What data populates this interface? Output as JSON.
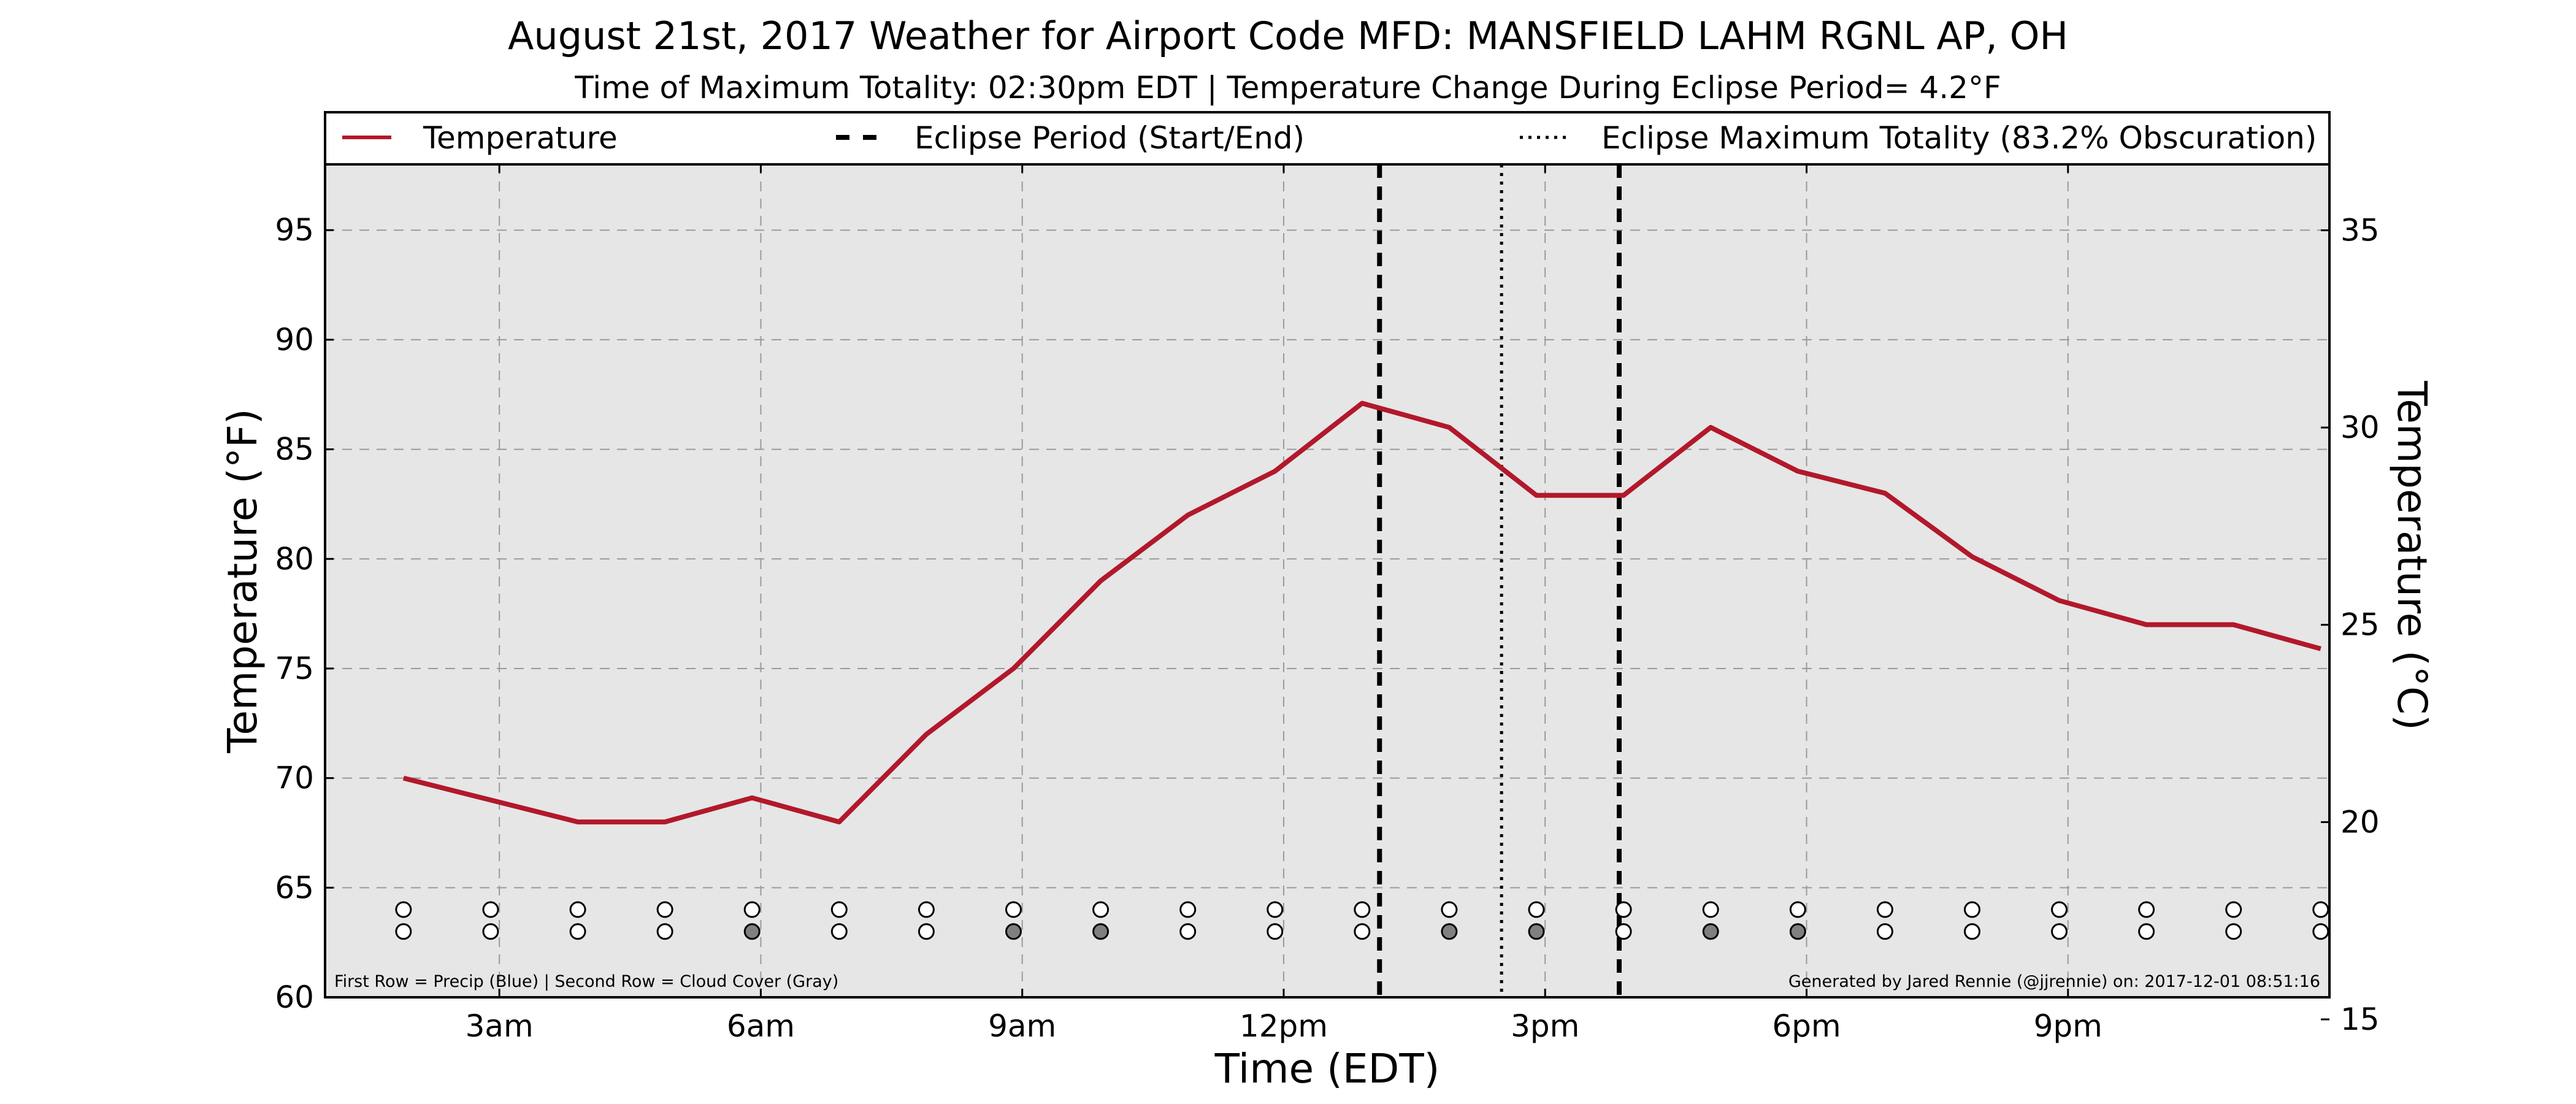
{
  "chart_data": {
    "type": "line",
    "title": "August 21st, 2017 Weather for Airport Code MFD: MANSFIELD LAHM RGNL AP, OH",
    "subtitle": "Time of Maximum Totality: 02:30pm EDT | Temperature Change During Eclipse Period= 4.2°F",
    "xlabel": "Time (EDT)",
    "ylabel": "Temperature (°F)",
    "y2label": "Temperature (°C)",
    "xlim": [
      1.0,
      24.0
    ],
    "ylim": [
      60,
      98
    ],
    "y2lim": [
      15.56,
      36.67
    ],
    "grid": true,
    "legend_position": "top",
    "x_ticks": [
      {
        "x": 3,
        "label": "3am"
      },
      {
        "x": 6,
        "label": "6am"
      },
      {
        "x": 9,
        "label": "9am"
      },
      {
        "x": 12,
        "label": "12pm"
      },
      {
        "x": 15,
        "label": "3pm"
      },
      {
        "x": 18,
        "label": "6pm"
      },
      {
        "x": 21,
        "label": "9pm"
      }
    ],
    "y_ticks": [
      {
        "y": 60,
        "label": "60"
      },
      {
        "y": 65,
        "label": "65"
      },
      {
        "y": 70,
        "label": "70"
      },
      {
        "y": 75,
        "label": "75"
      },
      {
        "y": 80,
        "label": "80"
      },
      {
        "y": 85,
        "label": "85"
      },
      {
        "y": 90,
        "label": "90"
      },
      {
        "y": 95,
        "label": "95"
      }
    ],
    "y2_ticks": [
      {
        "y": 15,
        "label": "15"
      },
      {
        "y": 20,
        "label": "20"
      },
      {
        "y": 25,
        "label": "25"
      },
      {
        "y": 30,
        "label": "30"
      },
      {
        "y": 35,
        "label": "35"
      }
    ],
    "series": [
      {
        "name": "Temperature",
        "color": "#b2182b",
        "x": [
          1.9,
          2.9,
          3.9,
          4.9,
          5.9,
          6.9,
          7.9,
          8.9,
          9.9,
          10.9,
          11.9,
          12.9,
          13.9,
          14.9,
          15.9,
          16.9,
          17.9,
          18.9,
          19.9,
          20.9,
          21.9,
          22.9,
          23.9
        ],
        "y": [
          70,
          69,
          68,
          68,
          69.1,
          68,
          72,
          75,
          79,
          82,
          84,
          87.1,
          86,
          82.9,
          82.9,
          86,
          84,
          83,
          80.1,
          78.1,
          77,
          77,
          75.9
        ]
      }
    ],
    "eclipse_period": {
      "label": "Eclipse Period (Start/End)",
      "start": 13.1,
      "end": 15.85
    },
    "eclipse_max": {
      "label": "Eclipse Maximum Totality (83.2% Obscuration)",
      "x": 14.5
    },
    "indicator_rows": {
      "x": [
        1.9,
        2.9,
        3.9,
        4.9,
        5.9,
        6.9,
        7.9,
        8.9,
        9.9,
        10.9,
        11.9,
        12.9,
        13.9,
        14.9,
        15.9,
        16.9,
        17.9,
        18.9,
        19.9,
        20.9,
        21.9,
        22.9,
        23.9
      ],
      "precip": [
        0,
        0,
        0,
        0,
        0,
        0,
        0,
        0,
        0,
        0,
        0,
        0,
        0,
        0,
        0,
        0,
        0,
        0,
        0,
        0,
        0,
        0,
        0
      ],
      "cloud": [
        0,
        0,
        0,
        0,
        1,
        0,
        0,
        1,
        1,
        0,
        0,
        0,
        1,
        1,
        0,
        1,
        1,
        0,
        0,
        0,
        0,
        0,
        0
      ],
      "precip_color": "#1f77b4",
      "cloud_color": "#808080"
    },
    "footer_left": "First Row = Precip (Blue) | Second Row = Cloud Cover (Gray)",
    "footer_right": "Generated by Jared Rennie (@jjrennie) on: 2017-12-01 08:51:16"
  }
}
